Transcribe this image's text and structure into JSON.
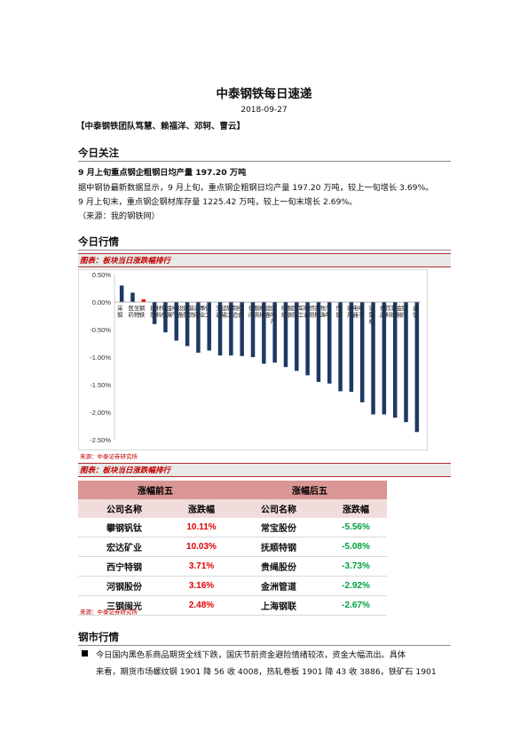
{
  "title": "中泰钢铁每日速递",
  "date": "2018-09-27",
  "authors": "【中泰钢铁团队笃慧、赖福洋、邓轲、曹云】",
  "sections": {
    "focus": "今日关注",
    "market": "今日行情",
    "steel": "钢市行情"
  },
  "focus": {
    "headline": "9 月上旬重点钢企粗钢日均产量 197.20 万吨",
    "line1": "据中钢协最新数据显示，9 月上旬，重点钢企粗钢日均产量 197.20 万吨，较上一旬增长 3.69%。",
    "line2": "9 月上旬末，重点钢企钢材库存量 1225.42 万吨，较上一旬末增长 2.69%。",
    "source": "（来源：我的钢铁网）"
  },
  "figure1_caption": "图表：板块当日涨跌幅排行",
  "figure2_caption": "图表：板块当日涨跌幅排行",
  "source_note": "来源：中泰证券研究所",
  "chart_data": {
    "type": "bar",
    "categories": [
      "采掘",
      "医药生物",
      "钢铁",
      "建筑材料",
      "有色金属",
      "电气设备",
      "建筑装饰",
      "公用事业",
      "化工",
      "交通运输",
      "轻工制造",
      "综合",
      "休闲服务",
      "机械设备",
      "房地产",
      "纺织服装",
      "国防军工",
      "商业贸易",
      "农林牧渔",
      "汽车",
      "传媒",
      "家用电器",
      "电子",
      "计算机",
      "食品饮料",
      "非银金融",
      "银行",
      "通信"
    ],
    "values": [
      0.3,
      0.17,
      0.05,
      -0.4,
      -0.55,
      -0.7,
      -0.8,
      -0.92,
      -0.88,
      -0.97,
      -0.97,
      -0.98,
      -1.0,
      -1.12,
      -1.1,
      -1.18,
      -1.25,
      -1.33,
      -1.45,
      -1.48,
      -1.62,
      -1.63,
      -1.82,
      -2.04,
      -2.04,
      -2.1,
      -2.18,
      -2.36
    ],
    "colors": [
      "#1f3864",
      "#1f3864",
      "#ff0000",
      "#1f3864",
      "#1f3864",
      "#1f3864",
      "#1f3864",
      "#1f3864",
      "#1f3864",
      "#1f3864",
      "#1f3864",
      "#1f3864",
      "#1f3864",
      "#1f3864",
      "#1f3864",
      "#1f3864",
      "#1f3864",
      "#1f3864",
      "#1f3864",
      "#1f3864",
      "#1f3864",
      "#1f3864",
      "#1f3864",
      "#1f3864",
      "#1f3864",
      "#1f3864",
      "#1f3864",
      "#1f3864"
    ],
    "yticks": [
      "0.50%",
      "0.00%",
      "-0.50%",
      "-1.00%",
      "-1.50%",
      "-2.00%",
      "-2.50%"
    ],
    "ylim": [
      -2.5,
      0.5
    ],
    "ylabel": "",
    "xlabel": "",
    "title": "",
    "grid": false
  },
  "table": {
    "group_top": "涨幅前五",
    "group_bottom": "涨幅后五",
    "col_name": "公司名称",
    "col_change": "涨跌幅",
    "top": [
      {
        "name": "攀钢钒钛",
        "change": "10.11%"
      },
      {
        "name": "宏达矿业",
        "change": "10.03%"
      },
      {
        "name": "西宁特钢",
        "change": "3.71%"
      },
      {
        "name": "河钢股份",
        "change": "3.16%"
      },
      {
        "name": "三钢闽光",
        "change": "2.48%"
      }
    ],
    "bottom": [
      {
        "name": "常宝股份",
        "change": "-5.56%"
      },
      {
        "name": "抚顺特钢",
        "change": "-5.08%"
      },
      {
        "name": "贵绳股份",
        "change": "-3.73%"
      },
      {
        "name": "金洲管道",
        "change": "-2.92%"
      },
      {
        "name": "上海钢联",
        "change": "-2.67%"
      }
    ]
  },
  "steel": {
    "line1": "今日国内黑色系商品期货全线下跌，国庆节前资金避险情绪较浓，资金大幅流出。具体",
    "line2": "来看，期货市场螺纹钢 1901 降 56 收 4008，热轧卷板 1901 降 43 收 3886，铁矿石 1901"
  }
}
